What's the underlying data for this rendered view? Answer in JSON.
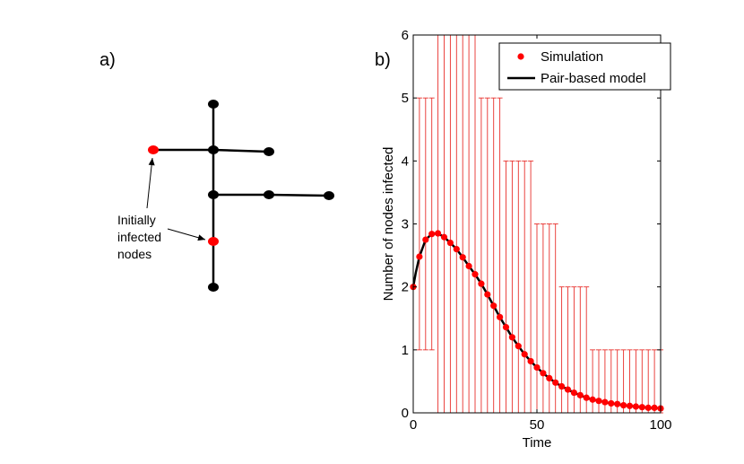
{
  "panel_a": {
    "label": "a)",
    "annotation_lines": [
      "Initially",
      "infected",
      "nodes"
    ],
    "colors": {
      "infected": "#ff0000",
      "susceptible": "#000000",
      "edge": "#000000"
    },
    "network": {
      "nodes": [
        {
          "id": "n1",
          "state": "susceptible"
        },
        {
          "id": "n2",
          "state": "infected"
        },
        {
          "id": "n3",
          "state": "susceptible"
        },
        {
          "id": "n4",
          "state": "susceptible"
        },
        {
          "id": "n5",
          "state": "susceptible"
        },
        {
          "id": "n6",
          "state": "susceptible"
        },
        {
          "id": "n7",
          "state": "susceptible"
        },
        {
          "id": "n8",
          "state": "infected"
        },
        {
          "id": "n9",
          "state": "susceptible"
        }
      ],
      "edges": [
        [
          "n1",
          "n3"
        ],
        [
          "n2",
          "n3"
        ],
        [
          "n3",
          "n4"
        ],
        [
          "n3",
          "n5"
        ],
        [
          "n5",
          "n6"
        ],
        [
          "n6",
          "n7"
        ],
        [
          "n5",
          "n8"
        ],
        [
          "n8",
          "n9"
        ]
      ],
      "annotated": [
        "n2",
        "n8"
      ]
    }
  },
  "panel_b": {
    "label": "b)",
    "colors": {
      "simulation": "#ff0000",
      "model": "#000000",
      "errorbar": "#e8302c"
    },
    "chart_data": {
      "type": "line",
      "xlabel": "Time",
      "ylabel": "Number of nodes infected",
      "xlim": [
        0,
        100
      ],
      "ylim": [
        0,
        6
      ],
      "xticks": [
        0,
        50,
        100
      ],
      "yticks": [
        0,
        1,
        2,
        3,
        4,
        5,
        6
      ],
      "grid": false,
      "legend_position": "top-right",
      "series": [
        {
          "name": "Simulation",
          "style": "markers",
          "x": [
            0,
            2.5,
            5,
            7.5,
            10,
            12.5,
            15,
            17.5,
            20,
            22.5,
            25,
            27.5,
            30,
            32.5,
            35,
            37.5,
            40,
            42.5,
            45,
            47.5,
            50,
            52.5,
            55,
            57.5,
            60,
            62.5,
            65,
            67.5,
            70,
            72.5,
            75,
            77.5,
            80,
            82.5,
            85,
            87.5,
            90,
            92.5,
            95,
            97.5,
            100
          ],
          "y": [
            2.0,
            2.48,
            2.75,
            2.84,
            2.85,
            2.79,
            2.7,
            2.6,
            2.47,
            2.33,
            2.2,
            2.05,
            1.88,
            1.7,
            1.52,
            1.36,
            1.2,
            1.06,
            0.93,
            0.82,
            0.72,
            0.63,
            0.55,
            0.48,
            0.42,
            0.37,
            0.32,
            0.28,
            0.24,
            0.21,
            0.19,
            0.17,
            0.15,
            0.14,
            0.12,
            0.11,
            0.1,
            0.09,
            0.08,
            0.08,
            0.07
          ],
          "error_upper": [
            2,
            5,
            5,
            5,
            6,
            6,
            6,
            6,
            6,
            6,
            6,
            5,
            5,
            5,
            5,
            4,
            4,
            4,
            4,
            4,
            3,
            3,
            3,
            3,
            2,
            2,
            2,
            2,
            2,
            1,
            1,
            1,
            1,
            1,
            1,
            1,
            1,
            1,
            1,
            1,
            1
          ],
          "error_lower": [
            2,
            1,
            1,
            1,
            0,
            0,
            0,
            0,
            0,
            0,
            0,
            0,
            0,
            0,
            0,
            0,
            0,
            0,
            0,
            0,
            0,
            0,
            0,
            0,
            0,
            0,
            0,
            0,
            0,
            0,
            0,
            0,
            0,
            0,
            0,
            0,
            0,
            0,
            0,
            0,
            0
          ]
        },
        {
          "name": "Pair-based model",
          "style": "line",
          "x": [
            0,
            1,
            2.5,
            5,
            7.5,
            10,
            12.5,
            15,
            17.5,
            20,
            22.5,
            25,
            27.5,
            30,
            32.5,
            35,
            37.5,
            40,
            42.5,
            45,
            47.5,
            50,
            52.5,
            55,
            57.5,
            60,
            62.5,
            65,
            67.5,
            70,
            72.5,
            75,
            77.5,
            80,
            82.5,
            85,
            87.5,
            90,
            92.5,
            95,
            97.5,
            100
          ],
          "y": [
            2.0,
            2.22,
            2.48,
            2.75,
            2.84,
            2.85,
            2.79,
            2.7,
            2.6,
            2.47,
            2.33,
            2.2,
            2.05,
            1.88,
            1.7,
            1.52,
            1.36,
            1.2,
            1.06,
            0.93,
            0.82,
            0.72,
            0.63,
            0.55,
            0.48,
            0.42,
            0.37,
            0.32,
            0.28,
            0.24,
            0.21,
            0.19,
            0.17,
            0.15,
            0.14,
            0.12,
            0.11,
            0.1,
            0.09,
            0.08,
            0.08,
            0.07
          ]
        }
      ]
    }
  }
}
